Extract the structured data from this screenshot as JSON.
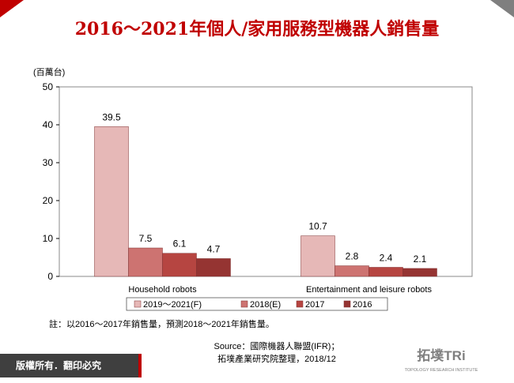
{
  "chart_data": {
    "type": "bar",
    "title": "2016～2021年個人/家用服務型機器人銷售量",
    "ylabel": "(百萬台)",
    "categories": [
      "Household robots",
      "Entertainment and leisure robots"
    ],
    "series": [
      {
        "name": "2019～2021(F)",
        "color": "#e6b8b7",
        "values": [
          39.5,
          10.7
        ]
      },
      {
        "name": "2018(E)",
        "color": "#cd7371",
        "values": [
          7.5,
          2.8
        ]
      },
      {
        "name": "2017",
        "color": "#b64541",
        "values": [
          6.1,
          2.4
        ]
      },
      {
        "name": "2016",
        "color": "#953432",
        "values": [
          4.7,
          2.1
        ]
      }
    ],
    "ylim": [
      0,
      50
    ],
    "yticks": [
      0,
      10,
      20,
      30,
      40,
      50
    ],
    "grid": false,
    "legend": "bottom"
  },
  "note": "註：以2016～2017年銷售量，預測2018～2021年銷售量。",
  "source": [
    "Source：國際機器人聯盟(IFR)；",
    "拓墣產業研究院整理，2018/12"
  ],
  "footer": "版權所有．翻印必究",
  "logo": {
    "name": "拓墣TRi",
    "subtitle": "TOPOLOGY RESEARCH INSTITUTE"
  }
}
